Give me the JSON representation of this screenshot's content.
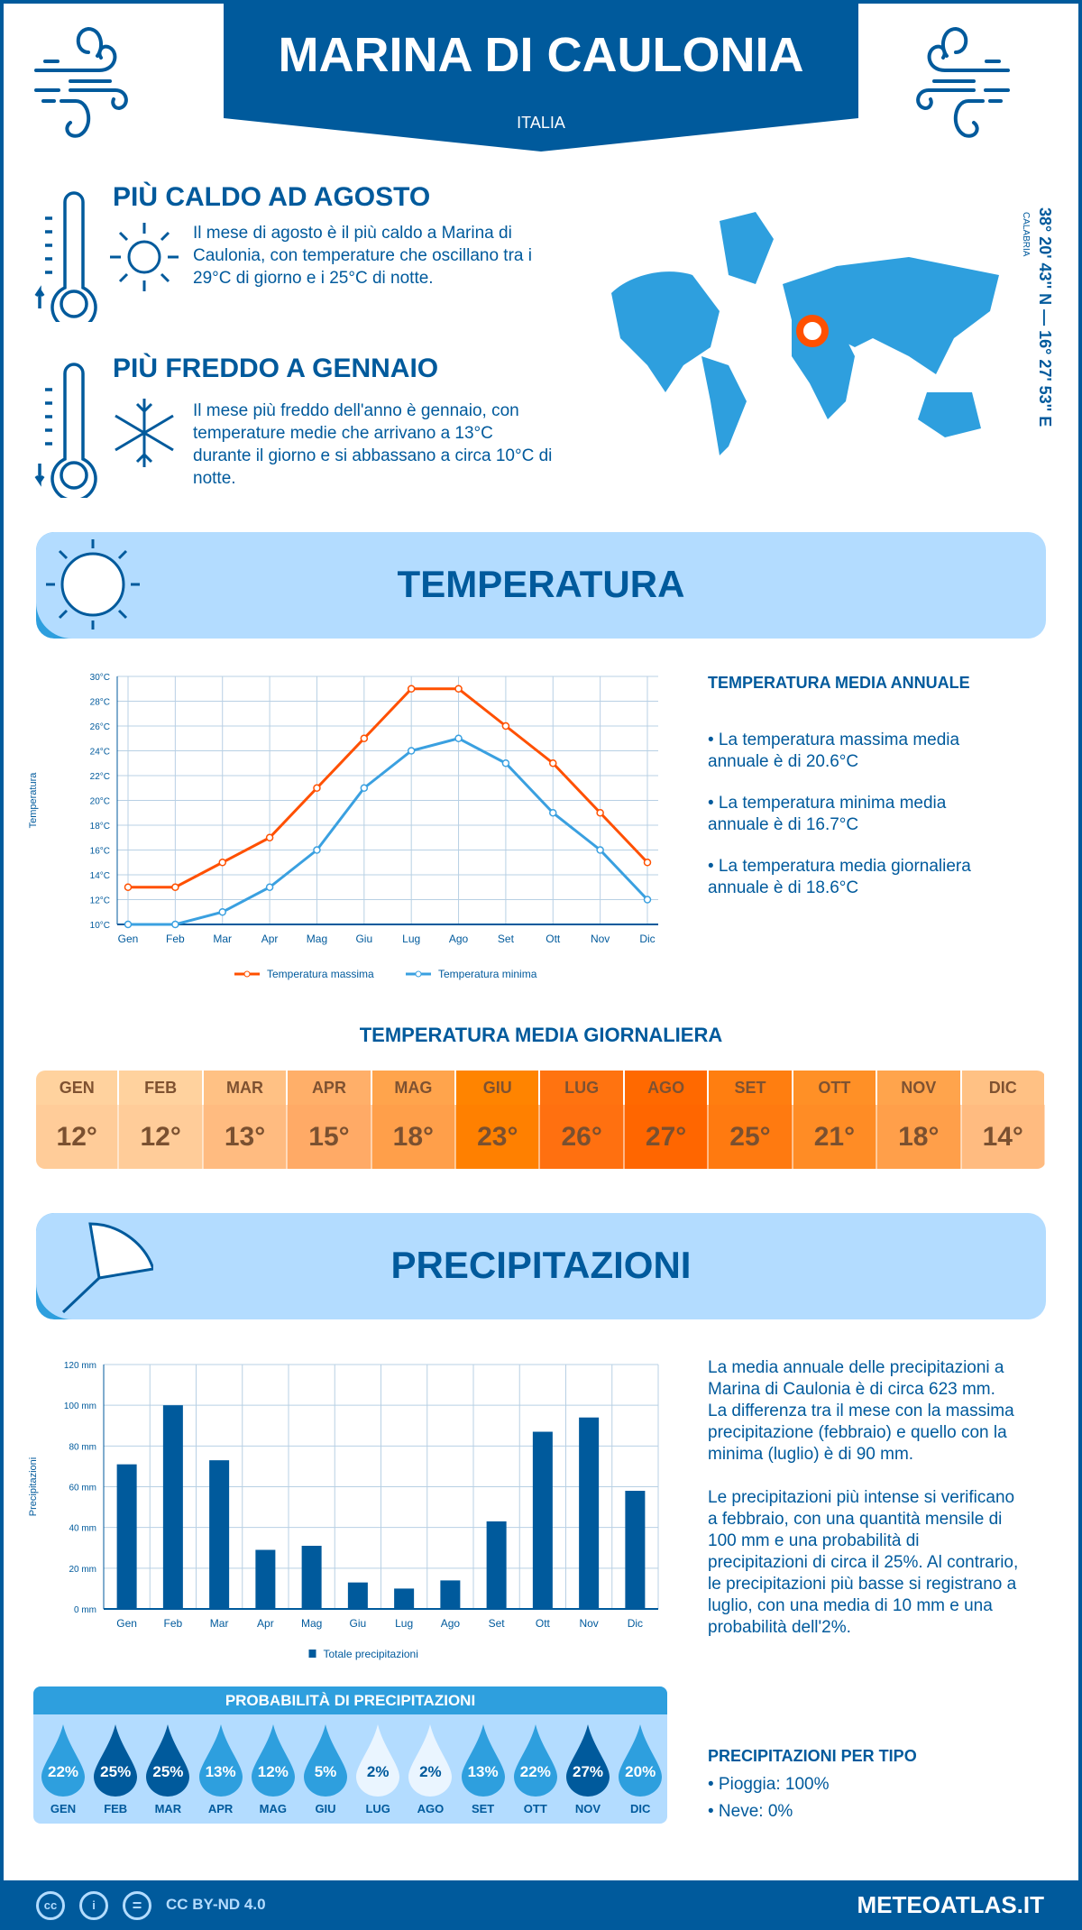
{
  "header": {
    "title": "MARINA DI CAULONIA",
    "country": "ITALIA"
  },
  "warm": {
    "title": "PIÙ CALDO AD AGOSTO",
    "text": "Il mese di agosto è il più caldo a Marina di Caulonia, con temperature che oscillano tra i 29°C di giorno e i 25°C di notte."
  },
  "cold": {
    "title": "PIÙ FREDDO A GENNAIO",
    "text": "Il mese più freddo dell'anno è gennaio, con temperature medie che arrivano a 13°C durante il giorno e si abbassano a circa 10°C di notte."
  },
  "map": {
    "coords": "38° 20' 43'' N — 16° 27' 53'' E",
    "region": "CALABRIA"
  },
  "temp_section": {
    "title": "TEMPERATURA",
    "annual_heading": "TEMPERATURA MEDIA ANNUALE",
    "bullets": [
      "• La temperatura massima media annuale è di 20.6°C",
      "• La temperatura minima media annuale è di 16.7°C",
      "• La temperatura media giornaliera annuale è di 18.6°C"
    ],
    "daily_heading": "TEMPERATURA MEDIA GIORNALIERA"
  },
  "daily": {
    "months": [
      "GEN",
      "FEB",
      "MAR",
      "APR",
      "MAG",
      "GIU",
      "LUG",
      "AGO",
      "SET",
      "OTT",
      "NOV",
      "DIC"
    ],
    "values": [
      "12°",
      "12°",
      "13°",
      "15°",
      "18°",
      "23°",
      "26°",
      "27°",
      "25°",
      "21°",
      "18°",
      "14°"
    ],
    "colors": [
      "#ffcc99",
      "#ffcc99",
      "#ffbb80",
      "#ffaa66",
      "#ff9f4a",
      "#ff8000",
      "#ff7010",
      "#ff6600",
      "#ff7a10",
      "#ff8c25",
      "#ff9f4a",
      "#ffbb80"
    ]
  },
  "precip_section": {
    "title": "PRECIPITAZIONI",
    "para1": "La media annuale delle precipitazioni a Marina di Caulonia è di circa 623 mm. La differenza tra il mese con la massima precipitazione (febbraio) e quello con la minima (luglio) è di 90 mm.",
    "para2": "Le precipitazioni più intense si verificano a febbraio, con una quantità mensile di 100 mm e una probabilità di precipitazioni di circa il 25%. Al contrario, le precipitazioni più basse si registrano a luglio, con una media di 10 mm e una probabilità dell'2%."
  },
  "probability": {
    "title": "PROBABILITÀ DI PRECIPITAZIONI",
    "months": [
      "GEN",
      "FEB",
      "MAR",
      "APR",
      "MAG",
      "GIU",
      "LUG",
      "AGO",
      "SET",
      "OTT",
      "NOV",
      "DIC"
    ],
    "values": [
      "22%",
      "25%",
      "25%",
      "13%",
      "12%",
      "5%",
      "2%",
      "2%",
      "13%",
      "22%",
      "27%",
      "20%"
    ],
    "colors": [
      "#2e9fde",
      "#005a9c",
      "#005a9c",
      "#2e9fde",
      "#2e9fde",
      "#2e9fde",
      "#eaf5ff",
      "#eaf5ff",
      "#2e9fde",
      "#2e9fde",
      "#005a9c",
      "#2e9fde"
    ]
  },
  "types": {
    "heading": "PRECIPITAZIONI PER TIPO",
    "items": [
      "• Pioggia: 100%",
      "• Neve: 0%"
    ]
  },
  "footer": {
    "license": "CC BY-ND 4.0",
    "site": "METEOATLAS.IT",
    "cc": "cc",
    "eq": "="
  },
  "chart_data": [
    {
      "type": "line",
      "categories": [
        "Gen",
        "Feb",
        "Mar",
        "Apr",
        "Mag",
        "Giu",
        "Lug",
        "Ago",
        "Set",
        "Ott",
        "Nov",
        "Dic"
      ],
      "series": [
        {
          "name": "Temperatura massima",
          "color": "#ff5000",
          "values": [
            13,
            13,
            15,
            17,
            21,
            25,
            29,
            29,
            26,
            23,
            19,
            15
          ]
        },
        {
          "name": "Temperatura minima",
          "color": "#3aa0e0",
          "values": [
            10,
            10,
            11,
            13,
            16,
            21,
            24,
            25,
            23,
            19,
            16,
            12
          ]
        }
      ],
      "ylabel": "Temperatura",
      "ylim": [
        10,
        30
      ],
      "yticks": [
        "10°C",
        "12°C",
        "14°C",
        "16°C",
        "18°C",
        "20°C",
        "22°C",
        "24°C",
        "26°C",
        "28°C",
        "30°C"
      ],
      "legend": "bottom",
      "grid": true
    },
    {
      "type": "bar",
      "categories": [
        "Gen",
        "Feb",
        "Mar",
        "Apr",
        "Mag",
        "Giu",
        "Lug",
        "Ago",
        "Set",
        "Ott",
        "Nov",
        "Dic"
      ],
      "series": [
        {
          "name": "Totale precipitazioni",
          "color": "#005a9c",
          "values": [
            71,
            100,
            73,
            29,
            31,
            13,
            10,
            14,
            43,
            87,
            94,
            58
          ]
        }
      ],
      "ylabel": "Precipitazioni",
      "ylim": [
        0,
        120
      ],
      "yticks": [
        "0 mm",
        "20 mm",
        "40 mm",
        "60 mm",
        "80 mm",
        "100 mm",
        "120 mm"
      ],
      "legend": "bottom",
      "grid": true
    }
  ]
}
